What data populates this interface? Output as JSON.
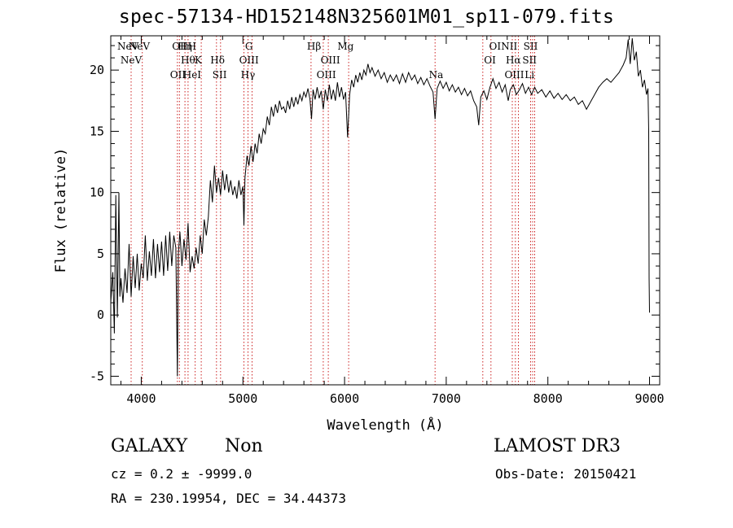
{
  "header": {
    "title": "spec-57134-HD152148N325601M01_sp11-079.fits"
  },
  "footer": {
    "class_label": "GALAXY",
    "subclass_label": "Non",
    "survey": "LAMOST DR3",
    "cz_text": "cz = 0.2 ± -9999.0",
    "obs_date_text": "Obs-Date: 20150421",
    "radec_text": "RA = 230.19954, DEC =  34.44373"
  },
  "chart_data": {
    "type": "line",
    "title": "spec-57134-HD152148N325601M01_sp11-079.fits",
    "xlabel": "Wavelength (Å)",
    "ylabel": "Flux (relative)",
    "xlim": [
      3700,
      9100
    ],
    "ylim": [
      -5.7,
      22.8
    ],
    "grid": false,
    "legend": "none",
    "x_ticks": [
      4000,
      5000,
      6000,
      7000,
      8000,
      9000
    ],
    "y_ticks": [
      -5,
      0,
      5,
      10,
      15,
      20
    ],
    "line_color": "#000000",
    "marker_color": "#cc2222",
    "series": [
      {
        "points": [
          [
            3700,
            1.0
          ],
          [
            3720,
            3.5
          ],
          [
            3735,
            -1.5
          ],
          [
            3750,
            9.8
          ],
          [
            3765,
            -0.2
          ],
          [
            3780,
            10.0
          ],
          [
            3790,
            1.5
          ],
          [
            3800,
            3.0
          ],
          [
            3820,
            1.0
          ],
          [
            3840,
            3.8
          ],
          [
            3860,
            1.8
          ],
          [
            3880,
            5.8
          ],
          [
            3900,
            1.5
          ],
          [
            3920,
            4.8
          ],
          [
            3940,
            2.2
          ],
          [
            3960,
            5.0
          ],
          [
            3980,
            2.0
          ],
          [
            4000,
            4.2
          ],
          [
            4020,
            3.0
          ],
          [
            4040,
            6.5
          ],
          [
            4060,
            2.8
          ],
          [
            4080,
            5.2
          ],
          [
            4100,
            3.2
          ],
          [
            4120,
            6.2
          ],
          [
            4140,
            3.0
          ],
          [
            4160,
            5.8
          ],
          [
            4180,
            3.5
          ],
          [
            4200,
            6.0
          ],
          [
            4220,
            3.2
          ],
          [
            4240,
            6.5
          ],
          [
            4260,
            3.6
          ],
          [
            4280,
            6.8
          ],
          [
            4300,
            4.0
          ],
          [
            4320,
            6.5
          ],
          [
            4340,
            5.5
          ],
          [
            4355,
            -5.0
          ],
          [
            4365,
            5.0
          ],
          [
            4380,
            6.8
          ],
          [
            4400,
            4.0
          ],
          [
            4420,
            6.2
          ],
          [
            4440,
            4.5
          ],
          [
            4460,
            7.5
          ],
          [
            4480,
            3.5
          ],
          [
            4500,
            4.8
          ],
          [
            4520,
            3.8
          ],
          [
            4540,
            5.5
          ],
          [
            4560,
            4.2
          ],
          [
            4580,
            6.5
          ],
          [
            4600,
            5.0
          ],
          [
            4620,
            7.8
          ],
          [
            4640,
            6.5
          ],
          [
            4660,
            8.0
          ],
          [
            4680,
            11.0
          ],
          [
            4700,
            9.2
          ],
          [
            4720,
            12.2
          ],
          [
            4740,
            10.0
          ],
          [
            4760,
            11.2
          ],
          [
            4780,
            9.8
          ],
          [
            4800,
            11.8
          ],
          [
            4820,
            10.2
          ],
          [
            4840,
            11.5
          ],
          [
            4860,
            10.0
          ],
          [
            4880,
            11.0
          ],
          [
            4900,
            9.8
          ],
          [
            4920,
            10.5
          ],
          [
            4940,
            9.5
          ],
          [
            4960,
            11.0
          ],
          [
            4980,
            9.8
          ],
          [
            5000,
            10.5
          ],
          [
            5010,
            7.3
          ],
          [
            5020,
            11.2
          ],
          [
            5040,
            13.0
          ],
          [
            5060,
            12.2
          ],
          [
            5080,
            13.8
          ],
          [
            5100,
            12.5
          ],
          [
            5120,
            14.0
          ],
          [
            5140,
            13.2
          ],
          [
            5160,
            14.8
          ],
          [
            5180,
            14.0
          ],
          [
            5200,
            15.2
          ],
          [
            5220,
            14.8
          ],
          [
            5240,
            16.2
          ],
          [
            5260,
            15.5
          ],
          [
            5280,
            17.0
          ],
          [
            5300,
            16.2
          ],
          [
            5320,
            17.2
          ],
          [
            5340,
            16.5
          ],
          [
            5360,
            17.5
          ],
          [
            5380,
            16.8
          ],
          [
            5400,
            17.0
          ],
          [
            5420,
            16.5
          ],
          [
            5440,
            17.5
          ],
          [
            5460,
            16.8
          ],
          [
            5480,
            17.8
          ],
          [
            5500,
            17.0
          ],
          [
            5520,
            17.8
          ],
          [
            5540,
            17.2
          ],
          [
            5560,
            18.0
          ],
          [
            5580,
            17.5
          ],
          [
            5600,
            18.2
          ],
          [
            5620,
            17.8
          ],
          [
            5640,
            18.5
          ],
          [
            5660,
            17.6
          ],
          [
            5675,
            16.0
          ],
          [
            5690,
            18.4
          ],
          [
            5710,
            17.6
          ],
          [
            5730,
            18.6
          ],
          [
            5750,
            17.7
          ],
          [
            5770,
            18.3
          ],
          [
            5790,
            16.8
          ],
          [
            5810,
            18.4
          ],
          [
            5830,
            17.5
          ],
          [
            5850,
            18.8
          ],
          [
            5870,
            17.6
          ],
          [
            5890,
            18.4
          ],
          [
            5910,
            17.5
          ],
          [
            5930,
            19.0
          ],
          [
            5950,
            17.8
          ],
          [
            5970,
            18.6
          ],
          [
            5990,
            17.6
          ],
          [
            6010,
            18.2
          ],
          [
            6030,
            14.5
          ],
          [
            6050,
            18.0
          ],
          [
            6070,
            19.2
          ],
          [
            6090,
            18.6
          ],
          [
            6110,
            19.6
          ],
          [
            6130,
            19.0
          ],
          [
            6150,
            19.8
          ],
          [
            6170,
            19.2
          ],
          [
            6190,
            20.0
          ],
          [
            6210,
            19.6
          ],
          [
            6230,
            20.5
          ],
          [
            6250,
            19.8
          ],
          [
            6270,
            20.2
          ],
          [
            6300,
            19.5
          ],
          [
            6330,
            20.0
          ],
          [
            6360,
            19.3
          ],
          [
            6390,
            19.8
          ],
          [
            6420,
            19.0
          ],
          [
            6450,
            19.6
          ],
          [
            6480,
            19.1
          ],
          [
            6510,
            19.6
          ],
          [
            6540,
            18.9
          ],
          [
            6570,
            19.7
          ],
          [
            6600,
            19.0
          ],
          [
            6630,
            19.8
          ],
          [
            6660,
            19.2
          ],
          [
            6690,
            19.6
          ],
          [
            6720,
            18.9
          ],
          [
            6750,
            19.4
          ],
          [
            6780,
            18.8
          ],
          [
            6810,
            19.3
          ],
          [
            6840,
            18.7
          ],
          [
            6870,
            18.2
          ],
          [
            6890,
            16.0
          ],
          [
            6910,
            18.5
          ],
          [
            6940,
            19.1
          ],
          [
            6970,
            18.5
          ],
          [
            7000,
            19.0
          ],
          [
            7030,
            18.3
          ],
          [
            7060,
            18.8
          ],
          [
            7090,
            18.2
          ],
          [
            7120,
            18.6
          ],
          [
            7150,
            18.0
          ],
          [
            7180,
            18.5
          ],
          [
            7210,
            17.9
          ],
          [
            7240,
            18.3
          ],
          [
            7270,
            17.5
          ],
          [
            7300,
            17.0
          ],
          [
            7320,
            15.5
          ],
          [
            7340,
            17.8
          ],
          [
            7370,
            18.3
          ],
          [
            7400,
            17.6
          ],
          [
            7430,
            18.6
          ],
          [
            7460,
            19.3
          ],
          [
            7490,
            18.5
          ],
          [
            7520,
            19.0
          ],
          [
            7550,
            18.2
          ],
          [
            7580,
            18.8
          ],
          [
            7610,
            17.5
          ],
          [
            7630,
            18.4
          ],
          [
            7660,
            18.8
          ],
          [
            7690,
            18.0
          ],
          [
            7720,
            18.4
          ],
          [
            7750,
            18.9
          ],
          [
            7780,
            18.1
          ],
          [
            7810,
            18.6
          ],
          [
            7840,
            18.0
          ],
          [
            7870,
            18.6
          ],
          [
            7900,
            18.1
          ],
          [
            7940,
            18.4
          ],
          [
            7980,
            17.8
          ],
          [
            8020,
            18.3
          ],
          [
            8060,
            17.7
          ],
          [
            8100,
            18.1
          ],
          [
            8140,
            17.6
          ],
          [
            8180,
            18.0
          ],
          [
            8220,
            17.5
          ],
          [
            8260,
            17.8
          ],
          [
            8300,
            17.2
          ],
          [
            8340,
            17.5
          ],
          [
            8380,
            16.8
          ],
          [
            8420,
            17.4
          ],
          [
            8460,
            18.0
          ],
          [
            8500,
            18.6
          ],
          [
            8540,
            19.0
          ],
          [
            8580,
            19.3
          ],
          [
            8620,
            19.0
          ],
          [
            8660,
            19.4
          ],
          [
            8700,
            19.8
          ],
          [
            8740,
            20.4
          ],
          [
            8770,
            21.0
          ],
          [
            8790,
            22.5
          ],
          [
            8810,
            20.5
          ],
          [
            8830,
            22.6
          ],
          [
            8850,
            20.8
          ],
          [
            8870,
            21.5
          ],
          [
            8890,
            19.5
          ],
          [
            8910,
            20.0
          ],
          [
            8930,
            18.6
          ],
          [
            8950,
            19.2
          ],
          [
            8970,
            18.0
          ],
          [
            8985,
            18.5
          ],
          [
            8992,
            15.0
          ],
          [
            8996,
            3.0
          ],
          [
            9000,
            0.2
          ]
        ]
      }
    ],
    "lines_top": [
      {
        "label": "NeV",
        "x": 3870
      },
      {
        "label": "NeV",
        "x": 3980
      },
      {
        "label": "OII",
        "x": 4380
      },
      {
        "label": "Hη",
        "x": 4430
      },
      {
        "label": "H",
        "x": 4500
      },
      {
        "label": "G",
        "x": 5060
      },
      {
        "label": "Hβ",
        "x": 5700
      },
      {
        "label": "Mg",
        "x": 6010
      },
      {
        "label": "OI",
        "x": 7480
      },
      {
        "label": "NII",
        "x": 7620
      },
      {
        "label": "SII",
        "x": 7830
      }
    ],
    "lines_mid": [
      {
        "label": "NeV",
        "x": 3900
      },
      {
        "label": "Hθ",
        "x": 4460
      },
      {
        "label": "K",
        "x": 4560
      },
      {
        "label": "Hδ",
        "x": 4750
      },
      {
        "label": "OIII",
        "x": 5060
      },
      {
        "label": "OIII",
        "x": 5860
      },
      {
        "label": "OI",
        "x": 7430
      },
      {
        "label": "Hα",
        "x": 7660
      },
      {
        "label": "SII",
        "x": 7820
      }
    ],
    "lines_low": [
      {
        "label": "OII",
        "x": 4360
      },
      {
        "label": "HeI",
        "x": 4500
      },
      {
        "label": "SII",
        "x": 4770
      },
      {
        "label": "Hγ",
        "x": 5050
      },
      {
        "label": "OIII",
        "x": 5820
      },
      {
        "label": "Na",
        "x": 6900
      },
      {
        "label": "OIII",
        "x": 7670
      },
      {
        "label": "Li",
        "x": 7820
      }
    ],
    "marker_lines_x": [
      3900,
      4010,
      4355,
      4375,
      4430,
      4460,
      4530,
      4590,
      4740,
      4780,
      5010,
      5050,
      5090,
      5670,
      5790,
      5840,
      6040,
      6890,
      7360,
      7440,
      7650,
      7680,
      7710,
      7830,
      7850,
      7870
    ]
  }
}
